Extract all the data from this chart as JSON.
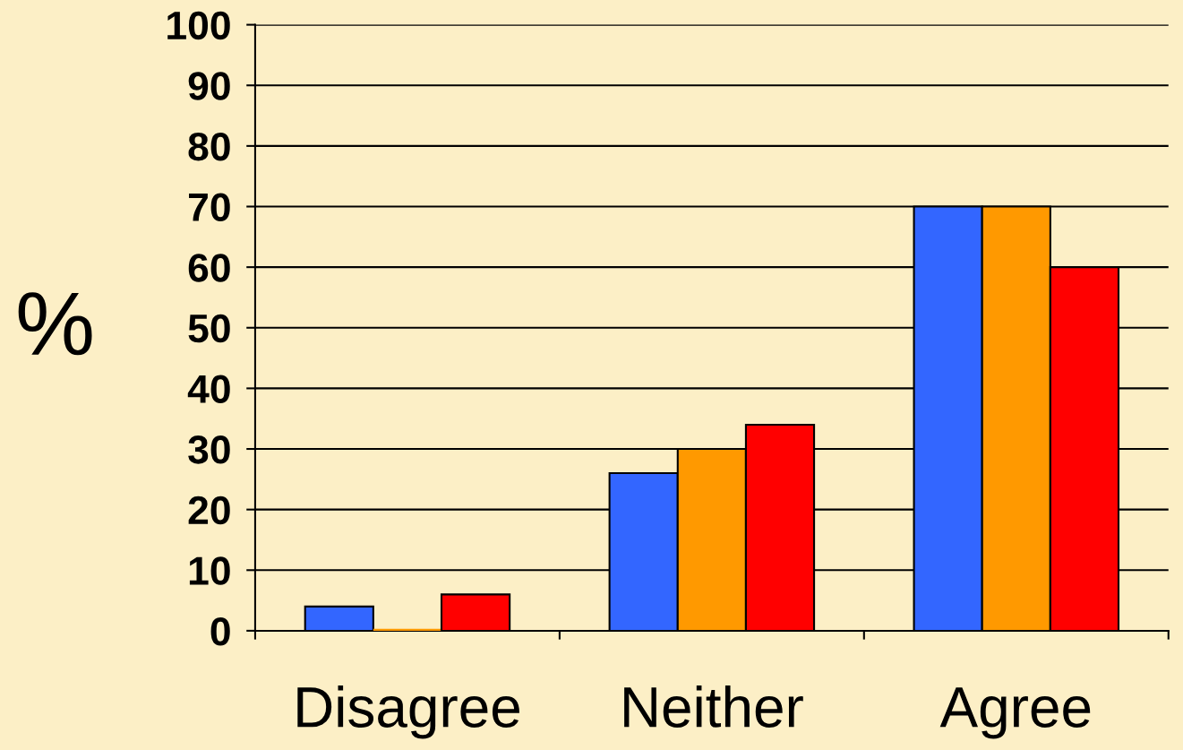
{
  "chart_data": {
    "type": "bar",
    "ylabel": "%",
    "categories": [
      "Disagree",
      "Neither",
      "Agree"
    ],
    "series": [
      {
        "color": "#3366ff",
        "values": [
          4,
          26,
          70
        ]
      },
      {
        "color": "#ff9900",
        "values": [
          0,
          30,
          70
        ]
      },
      {
        "color": "#ff0000",
        "values": [
          6,
          34,
          60
        ]
      }
    ],
    "ylim": [
      0,
      100
    ],
    "yticks": [
      0,
      10,
      20,
      30,
      40,
      50,
      60,
      70,
      80,
      90,
      100
    ],
    "grid": "y"
  }
}
